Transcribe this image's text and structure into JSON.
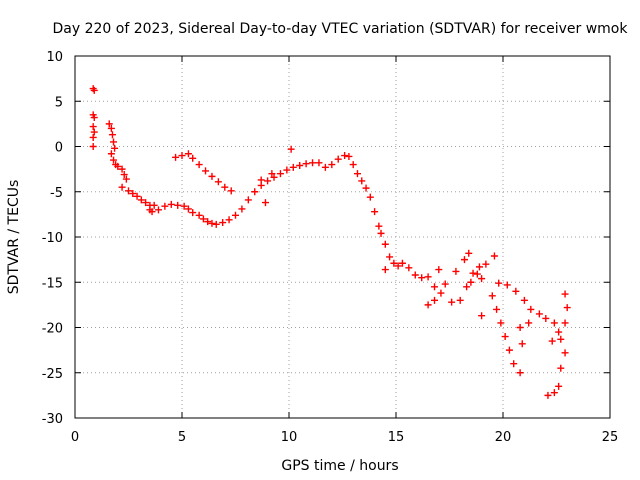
{
  "chart_data": {
    "type": "scatter",
    "title": "Day 220 of 2023, Sidereal Day-to-day VTEC variation (SDTVAR) for receiver wmok",
    "xlabel": "GPS time / hours",
    "ylabel": "SDTVAR / TECUs",
    "xlim": [
      0,
      25
    ],
    "ylim": [
      -30,
      10
    ],
    "xticks": [
      "0",
      "5",
      "10",
      "15",
      "20",
      "25"
    ],
    "yticks": [
      "10",
      "5",
      "0",
      "-5",
      "-10",
      "-15",
      "-20",
      "-25",
      "-30"
    ],
    "grid": true,
    "marker": "plus",
    "color": "#ff0000",
    "series": [
      {
        "name": "SDTVAR",
        "points": [
          [
            0.85,
            6.4
          ],
          [
            0.9,
            6.2
          ],
          [
            0.85,
            3.5
          ],
          [
            0.9,
            3.2
          ],
          [
            0.85,
            2.2
          ],
          [
            0.9,
            1.6
          ],
          [
            0.85,
            1.0
          ],
          [
            0.85,
            0.0
          ],
          [
            1.6,
            2.5
          ],
          [
            1.7,
            2.0
          ],
          [
            1.75,
            1.3
          ],
          [
            1.8,
            0.5
          ],
          [
            1.85,
            -0.2
          ],
          [
            1.7,
            -0.8
          ],
          [
            1.8,
            -1.5
          ],
          [
            1.9,
            -2.0
          ],
          [
            2.0,
            -2.2
          ],
          [
            2.2,
            -2.5
          ],
          [
            2.3,
            -3.1
          ],
          [
            2.4,
            -3.6
          ],
          [
            2.2,
            -4.5
          ],
          [
            2.5,
            -4.9
          ],
          [
            2.7,
            -5.2
          ],
          [
            2.9,
            -5.5
          ],
          [
            3.1,
            -5.9
          ],
          [
            3.3,
            -6.2
          ],
          [
            3.5,
            -6.5
          ],
          [
            3.7,
            -6.5
          ],
          [
            3.5,
            -7.0
          ],
          [
            3.6,
            -7.2
          ],
          [
            3.9,
            -7.0
          ],
          [
            4.2,
            -6.6
          ],
          [
            4.5,
            -6.4
          ],
          [
            4.8,
            -6.5
          ],
          [
            5.1,
            -6.6
          ],
          [
            5.3,
            -6.9
          ],
          [
            5.5,
            -7.3
          ],
          [
            5.8,
            -7.6
          ],
          [
            6.0,
            -8.0
          ],
          [
            6.2,
            -8.3
          ],
          [
            6.4,
            -8.5
          ],
          [
            6.6,
            -8.6
          ],
          [
            6.9,
            -8.4
          ],
          [
            7.2,
            -8.1
          ],
          [
            7.5,
            -7.6
          ],
          [
            7.8,
            -6.9
          ],
          [
            8.1,
            -5.9
          ],
          [
            8.4,
            -5.0
          ],
          [
            8.7,
            -4.3
          ],
          [
            9.0,
            -3.8
          ],
          [
            9.3,
            -3.4
          ],
          [
            9.6,
            -3.0
          ],
          [
            9.9,
            -2.6
          ],
          [
            10.2,
            -2.3
          ],
          [
            10.5,
            -2.1
          ],
          [
            10.8,
            -1.9
          ],
          [
            11.1,
            -1.8
          ],
          [
            11.4,
            -1.8
          ],
          [
            11.7,
            -2.3
          ],
          [
            12.0,
            -2.0
          ],
          [
            12.3,
            -1.4
          ],
          [
            12.6,
            -1.0
          ],
          [
            12.8,
            -1.1
          ],
          [
            13.0,
            -2.0
          ],
          [
            13.2,
            -3.0
          ],
          [
            13.4,
            -3.8
          ],
          [
            13.6,
            -4.6
          ],
          [
            13.8,
            -5.6
          ],
          [
            14.0,
            -7.2
          ],
          [
            14.2,
            -8.8
          ],
          [
            14.3,
            -9.6
          ],
          [
            14.5,
            -10.8
          ],
          [
            14.7,
            -12.2
          ],
          [
            14.9,
            -12.9
          ],
          [
            15.1,
            -13.2
          ],
          [
            15.3,
            -12.9
          ],
          [
            15.6,
            -13.4
          ],
          [
            15.9,
            -14.2
          ],
          [
            16.2,
            -14.5
          ],
          [
            16.5,
            -14.4
          ],
          [
            16.8,
            -15.5
          ],
          [
            17.0,
            -13.6
          ],
          [
            16.5,
            -17.5
          ],
          [
            16.8,
            -17.0
          ],
          [
            17.1,
            -16.2
          ],
          [
            17.3,
            -15.2
          ],
          [
            17.6,
            -17.2
          ],
          [
            18.0,
            -17.0
          ],
          [
            18.3,
            -15.5
          ],
          [
            18.6,
            -14.0
          ],
          [
            18.9,
            -13.3
          ],
          [
            19.2,
            -13.0
          ],
          [
            18.5,
            -15.0
          ],
          [
            18.8,
            -14.1
          ],
          [
            19.6,
            -12.1
          ],
          [
            19.0,
            -14.6
          ],
          [
            17.8,
            -13.8
          ],
          [
            18.2,
            -12.5
          ],
          [
            18.4,
            -11.8
          ],
          [
            19.8,
            -15.1
          ],
          [
            19.5,
            -16.5
          ],
          [
            19.7,
            -18.0
          ],
          [
            19.9,
            -19.5
          ],
          [
            20.1,
            -21.0
          ],
          [
            20.3,
            -22.5
          ],
          [
            20.5,
            -24.0
          ],
          [
            20.8,
            -25.0
          ],
          [
            20.2,
            -15.3
          ],
          [
            20.6,
            -16.0
          ],
          [
            21.0,
            -17.0
          ],
          [
            21.3,
            -18.0
          ],
          [
            20.8,
            -20.0
          ],
          [
            20.9,
            -21.8
          ],
          [
            21.2,
            -19.5
          ],
          [
            21.7,
            -18.5
          ],
          [
            22.0,
            -19.0
          ],
          [
            22.4,
            -19.5
          ],
          [
            22.6,
            -20.5
          ],
          [
            22.3,
            -21.5
          ],
          [
            22.1,
            -27.5
          ],
          [
            22.4,
            -27.2
          ],
          [
            22.6,
            -26.5
          ],
          [
            22.7,
            -24.5
          ],
          [
            22.9,
            -22.8
          ],
          [
            22.7,
            -21.3
          ],
          [
            22.9,
            -19.5
          ],
          [
            23.0,
            -17.8
          ],
          [
            22.9,
            -16.3
          ],
          [
            4.7,
            -1.2
          ],
          [
            5.0,
            -1.0
          ],
          [
            5.3,
            -0.8
          ],
          [
            5.5,
            -1.3
          ],
          [
            5.8,
            -2.0
          ],
          [
            6.1,
            -2.7
          ],
          [
            6.4,
            -3.3
          ],
          [
            6.7,
            -3.9
          ],
          [
            7.0,
            -4.5
          ],
          [
            7.3,
            -4.9
          ],
          [
            10.1,
            -0.3
          ],
          [
            8.7,
            -3.7
          ],
          [
            9.2,
            -3.0
          ],
          [
            8.9,
            -6.2
          ],
          [
            14.5,
            -13.6
          ],
          [
            19.0,
            -18.7
          ]
        ]
      }
    ]
  }
}
